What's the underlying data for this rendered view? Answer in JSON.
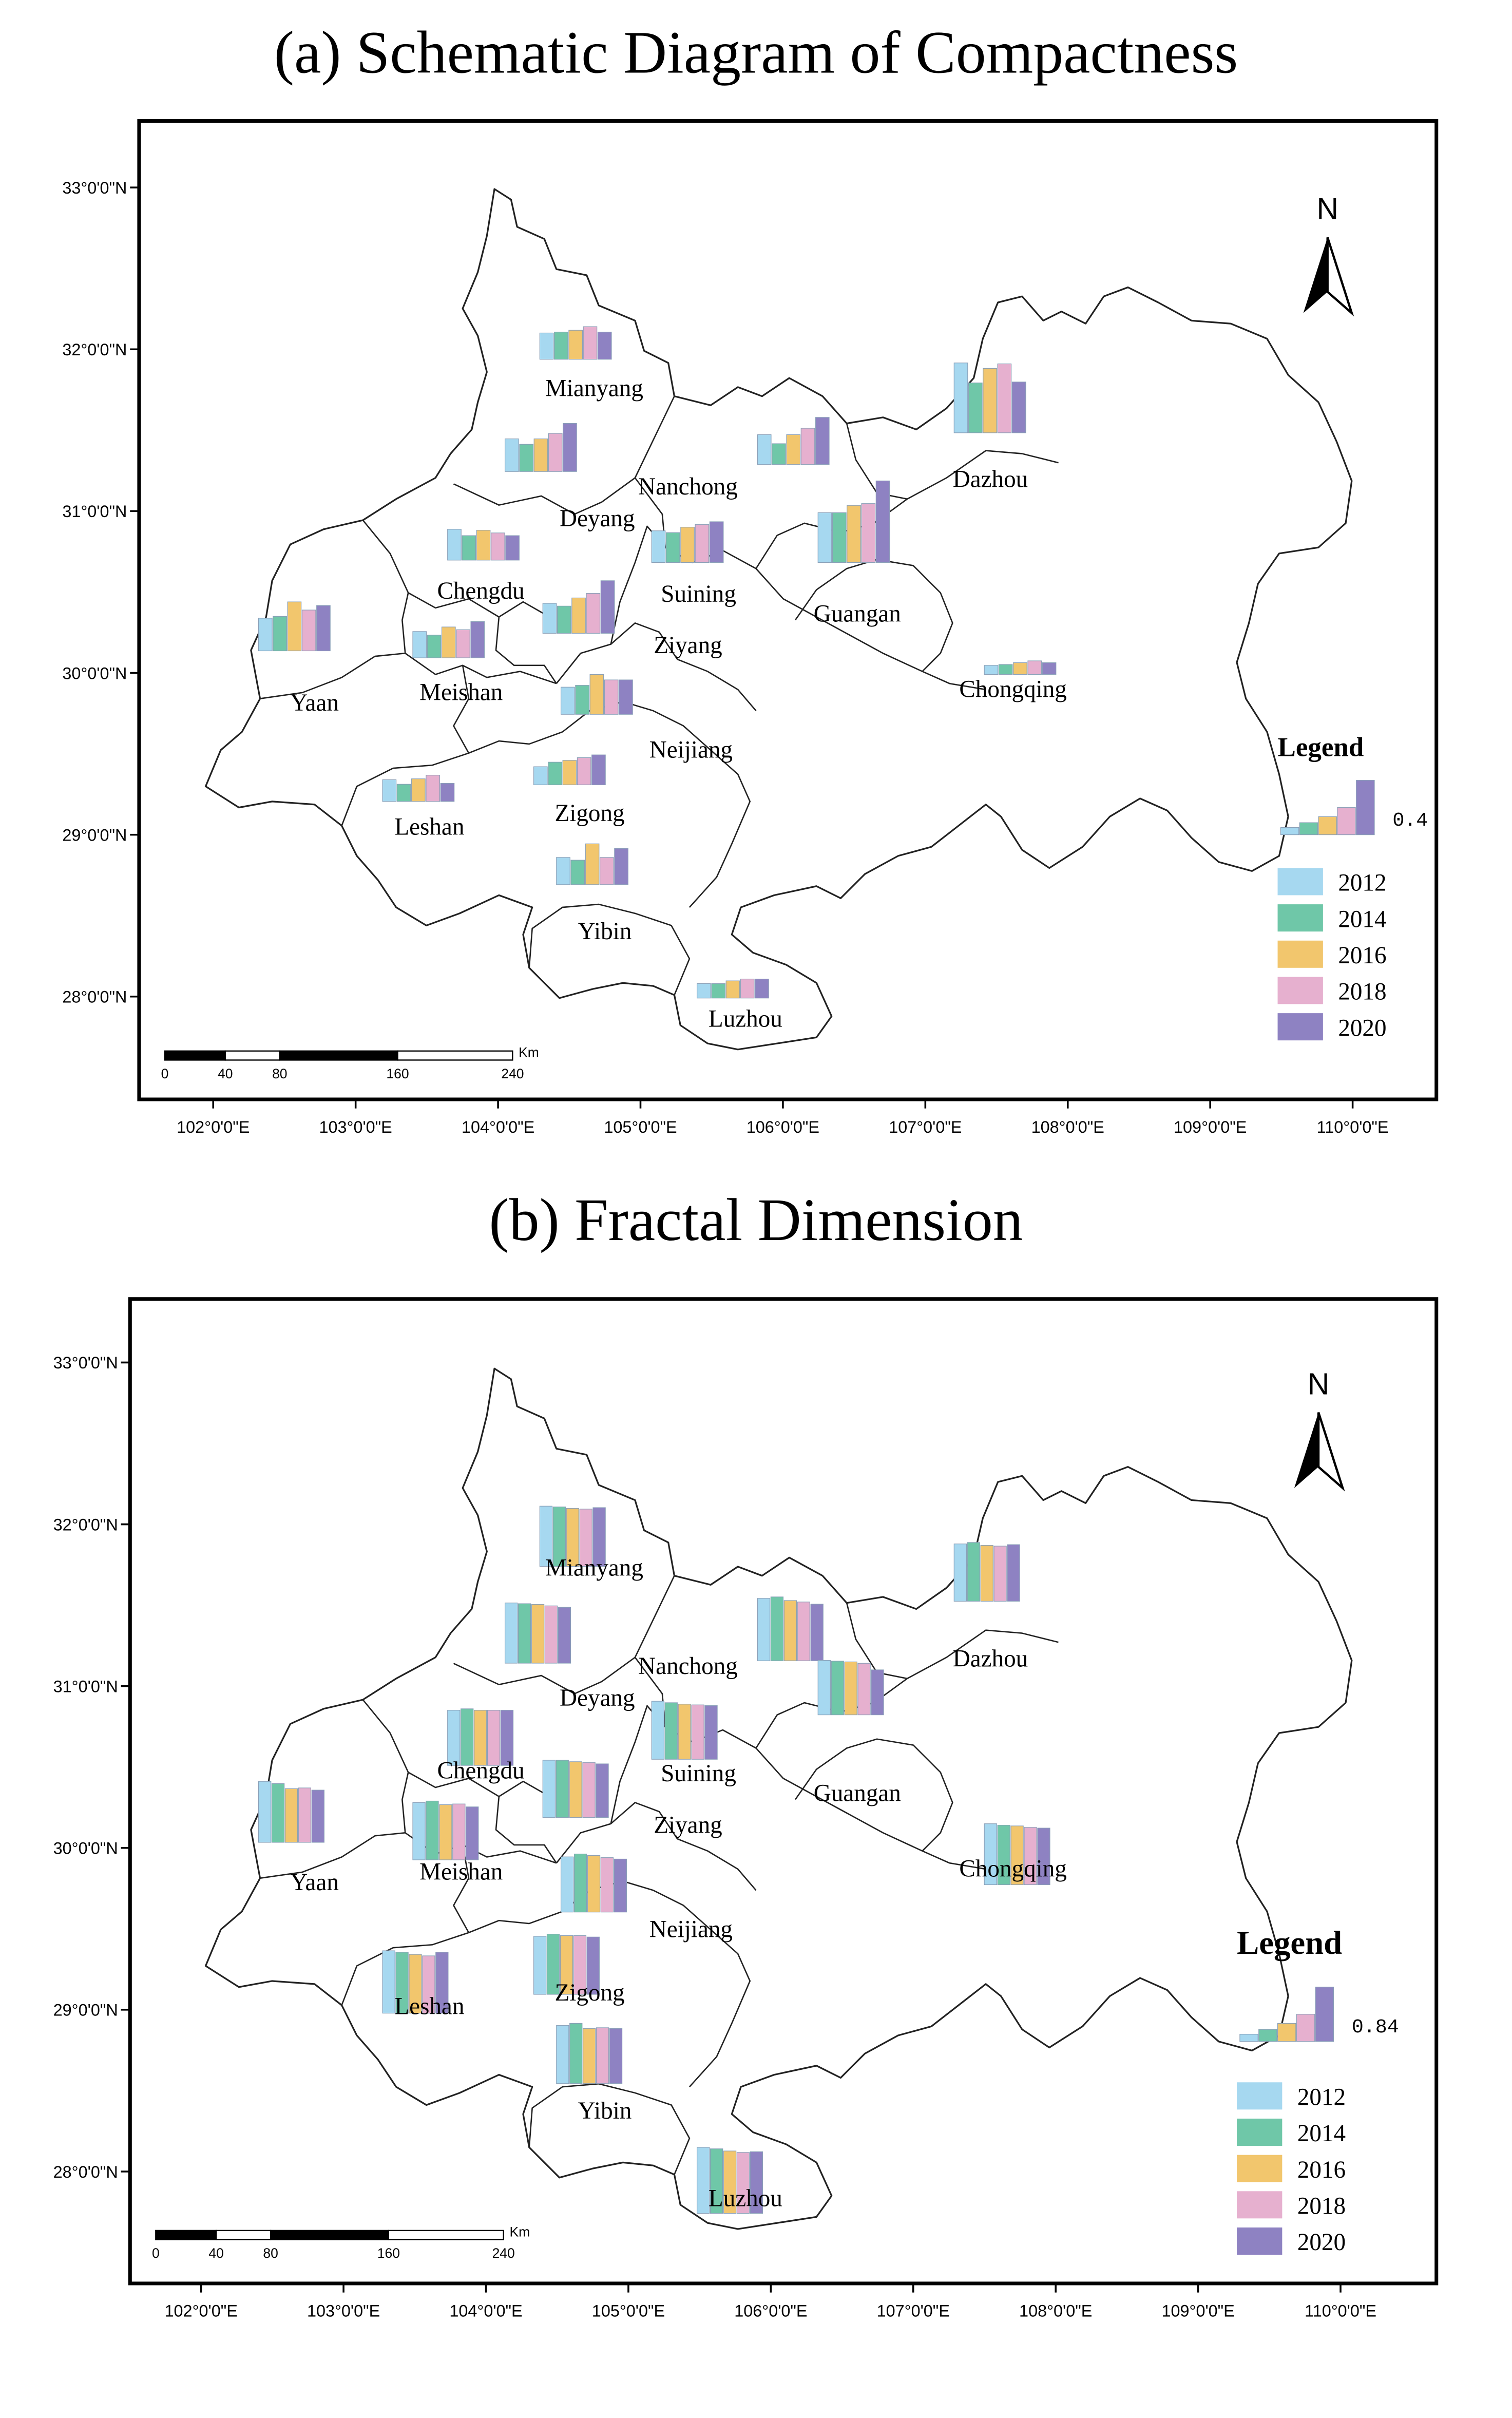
{
  "years": [
    "2012",
    "2014",
    "2016",
    "2018",
    "2020"
  ],
  "series_colors": {
    "2012": "#a6d8f0",
    "2014": "#6fc7a8",
    "2016": "#f2c66d",
    "2018": "#e6b0cf",
    "2020": "#8e82c2"
  },
  "lat_labels": [
    "33°0'0\"N",
    "32°0'0\"N",
    "31°0'0\"N",
    "30°0'0\"N",
    "29°0'0\"N",
    "28°0'0\"N"
  ],
  "lon_labels": [
    "102°0'0\"E",
    "103°0'0\"E",
    "104°0'0\"E",
    "105°0'0\"E",
    "106°0'0\"E",
    "107°0'0\"E",
    "108°0'0\"E",
    "109°0'0\"E",
    "110°0'0\"E"
  ],
  "scale": {
    "ticks": [
      "0",
      "40",
      "80",
      "160",
      "240"
    ],
    "unit": "Km"
  },
  "north_label": "N",
  "legend_title": "Legend",
  "panels": [
    {
      "title": "(a)  Schematic Diagram of Compactness",
      "legend_ref_value": "0.4",
      "cities": [
        {
          "name": "Mianyang",
          "values": [
            0.29,
            0.3,
            0.32,
            0.36,
            0.3
          ]
        },
        {
          "name": "Deyang",
          "values": [
            0.36,
            0.3,
            0.36,
            0.42,
            0.53
          ]
        },
        {
          "name": "Nanchong",
          "values": [
            0.33,
            0.23,
            0.33,
            0.4,
            0.52
          ]
        },
        {
          "name": "Dazhou",
          "values": [
            0.77,
            0.55,
            0.71,
            0.76,
            0.56
          ]
        },
        {
          "name": "Chengdu",
          "values": [
            0.34,
            0.27,
            0.33,
            0.3,
            0.27
          ]
        },
        {
          "name": "Suining",
          "values": [
            0.35,
            0.33,
            0.39,
            0.42,
            0.45
          ]
        },
        {
          "name": "Guangan",
          "values": [
            0.55,
            0.55,
            0.63,
            0.65,
            0.9
          ]
        },
        {
          "name": "Ziyang",
          "values": [
            0.33,
            0.3,
            0.39,
            0.44,
            0.58
          ]
        },
        {
          "name": "Yaan",
          "values": [
            0.36,
            0.38,
            0.54,
            0.45,
            0.5
          ]
        },
        {
          "name": "Meishan",
          "values": [
            0.29,
            0.25,
            0.34,
            0.31,
            0.4
          ]
        },
        {
          "name": "Chongqing",
          "values": [
            0.1,
            0.11,
            0.13,
            0.15,
            0.13
          ]
        },
        {
          "name": "Neijiang",
          "values": [
            0.3,
            0.32,
            0.44,
            0.38,
            0.38
          ]
        },
        {
          "name": "Leshan",
          "values": [
            0.24,
            0.19,
            0.25,
            0.29,
            0.2
          ]
        },
        {
          "name": "Zigong",
          "values": [
            0.2,
            0.25,
            0.27,
            0.3,
            0.33
          ]
        },
        {
          "name": "Yibin",
          "values": [
            0.3,
            0.27,
            0.45,
            0.3,
            0.4
          ]
        },
        {
          "name": "Luzhou",
          "values": [
            0.16,
            0.16,
            0.19,
            0.21,
            0.21
          ]
        }
      ]
    },
    {
      "title": "(b) Fractal Dimension",
      "legend_ref_value": "0.84",
      "cities": [
        {
          "name": "Mianyang",
          "values": [
            0.83,
            0.82,
            0.8,
            0.79,
            0.81
          ]
        },
        {
          "name": "Deyang",
          "values": [
            0.83,
            0.82,
            0.81,
            0.79,
            0.77
          ]
        },
        {
          "name": "Nanchong",
          "values": [
            0.86,
            0.88,
            0.83,
            0.81,
            0.78
          ]
        },
        {
          "name": "Dazhou",
          "values": [
            0.79,
            0.81,
            0.77,
            0.76,
            0.78
          ]
        },
        {
          "name": "Chengdu",
          "values": [
            0.76,
            0.78,
            0.76,
            0.76,
            0.76
          ]
        },
        {
          "name": "Suining",
          "values": [
            0.8,
            0.78,
            0.76,
            0.75,
            0.74
          ]
        },
        {
          "name": "Guangan",
          "values": [
            0.75,
            0.74,
            0.73,
            0.71,
            0.62
          ]
        },
        {
          "name": "Ziyang",
          "values": [
            0.79,
            0.79,
            0.77,
            0.76,
            0.74
          ]
        },
        {
          "name": "Yaan",
          "values": [
            0.84,
            0.81,
            0.74,
            0.75,
            0.72
          ]
        },
        {
          "name": "Meishan",
          "values": [
            0.79,
            0.81,
            0.76,
            0.77,
            0.73
          ]
        },
        {
          "name": "Chongqing",
          "values": [
            0.84,
            0.82,
            0.81,
            0.79,
            0.78
          ]
        },
        {
          "name": "Neijiang",
          "values": [
            0.76,
            0.8,
            0.78,
            0.75,
            0.73
          ]
        },
        {
          "name": "Leshan",
          "values": [
            0.86,
            0.84,
            0.81,
            0.79,
            0.84
          ]
        },
        {
          "name": "Zigong",
          "values": [
            0.8,
            0.83,
            0.81,
            0.81,
            0.79
          ]
        },
        {
          "name": "Yibin",
          "values": [
            0.8,
            0.83,
            0.76,
            0.77,
            0.76
          ]
        },
        {
          "name": "Luzhou",
          "values": [
            0.91,
            0.89,
            0.86,
            0.84,
            0.85
          ]
        }
      ]
    }
  ]
}
